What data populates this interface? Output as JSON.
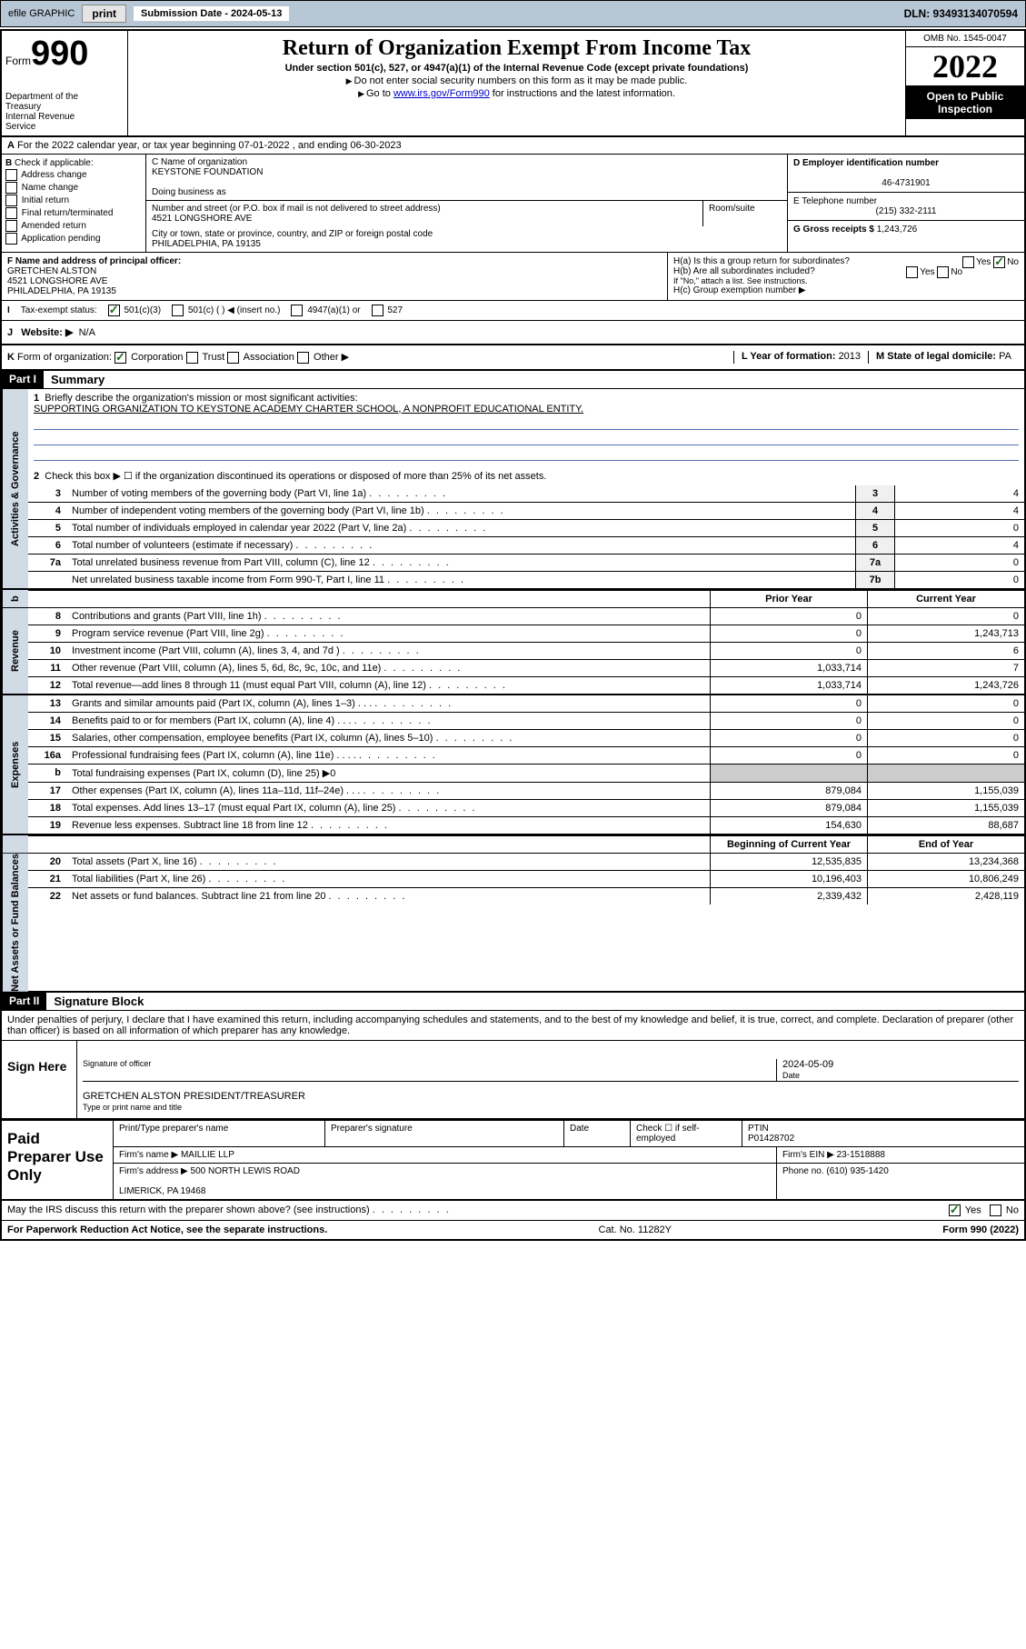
{
  "header_bar": {
    "efile_label": "efile GRAPHIC",
    "print_btn": "print",
    "sub_date_label": "Submission Date - 2024-05-13",
    "dln": "DLN: 93493134070594"
  },
  "title": {
    "form_label": "Form",
    "form_number": "990",
    "dept": "Department of the Treasury\nInternal Revenue Service",
    "main": "Return of Organization Exempt From Income Tax",
    "sub": "Under section 501(c), 527, or 4947(a)(1) of the Internal Revenue Code (except private foundations)",
    "line1": "Do not enter social security numbers on this form as it may be made public.",
    "line2_pre": "Go to ",
    "line2_link": "www.irs.gov/Form990",
    "line2_post": " for instructions and the latest information.",
    "omb": "OMB No. 1545-0047",
    "year": "2022",
    "open": "Open to Public Inspection"
  },
  "row_a": "For the 2022 calendar year, or tax year beginning 07-01-2022    , and ending 06-30-2023",
  "box_b": {
    "label": "Check if applicable:",
    "items": [
      "Address change",
      "Name change",
      "Initial return",
      "Final return/terminated",
      "Amended return",
      "Application pending"
    ]
  },
  "box_c": {
    "name_label": "C Name of organization",
    "name": "KEYSTONE FOUNDATION",
    "dba_label": "Doing business as",
    "addr_label": "Number and street (or P.O. box if mail is not delivered to street address)",
    "room_label": "Room/suite",
    "addr": "4521 LONGSHORE AVE",
    "city_label": "City or town, state or province, country, and ZIP or foreign postal code",
    "city": "PHILADELPHIA, PA  19135"
  },
  "box_d": {
    "ein_label": "D Employer identification number",
    "ein": "46-4731901",
    "phone_label": "E Telephone number",
    "phone": "(215) 332-2111",
    "gross_label": "G Gross receipts $",
    "gross": "1,243,726"
  },
  "box_f": {
    "label": "F  Name and address of principal officer:",
    "name": "GRETCHEN ALSTON",
    "addr1": "4521 LONGSHORE AVE",
    "addr2": "PHILADELPHIA, PA  19135"
  },
  "box_h": {
    "ha": "H(a)  Is this a group return for subordinates?",
    "hb": "H(b)  Are all subordinates included?",
    "hb_note": "If \"No,\" attach a list. See instructions.",
    "hc": "H(c)  Group exemption number ▶"
  },
  "row_i": {
    "label": "Tax-exempt status:",
    "opts": [
      "501(c)(3)",
      "501(c) (  ) ◀ (insert no.)",
      "4947(a)(1) or",
      "527"
    ]
  },
  "row_j": {
    "label": "Website: ▶",
    "val": "N/A"
  },
  "row_k": {
    "left": "Form of organization:",
    "opts": [
      "Corporation",
      "Trust",
      "Association",
      "Other ▶"
    ],
    "year_label": "L Year of formation:",
    "year": "2013",
    "state_label": "M State of legal domicile:",
    "state": "PA"
  },
  "part1": {
    "header": "Part I",
    "title": "Summary",
    "mission_label": "Briefly describe the organization's mission or most significant activities:",
    "mission": "SUPPORTING ORGANIZATION TO KEYSTONE ACADEMY CHARTER SCHOOL, A NONPROFIT EDUCATIONAL ENTITY.",
    "line2": "Check this box ▶ ☐  if the organization discontinued its operations or disposed of more than 25% of its net assets.",
    "gov_lines": [
      {
        "n": "3",
        "t": "Number of voting members of the governing body (Part VI, line 1a)",
        "box": "3",
        "v": "4"
      },
      {
        "n": "4",
        "t": "Number of independent voting members of the governing body (Part VI, line 1b)",
        "box": "4",
        "v": "4"
      },
      {
        "n": "5",
        "t": "Total number of individuals employed in calendar year 2022 (Part V, line 2a)",
        "box": "5",
        "v": "0"
      },
      {
        "n": "6",
        "t": "Total number of volunteers (estimate if necessary)",
        "box": "6",
        "v": "4"
      },
      {
        "n": "7a",
        "t": "Total unrelated business revenue from Part VIII, column (C), line 12",
        "box": "7a",
        "v": "0"
      },
      {
        "n": "",
        "t": "Net unrelated business taxable income from Form 990-T, Part I, line 11",
        "box": "7b",
        "v": "0"
      }
    ],
    "col_headers": {
      "b": "b",
      "prior": "Prior Year",
      "current": "Current Year"
    },
    "rev_lines": [
      {
        "n": "8",
        "t": "Contributions and grants (Part VIII, line 1h)",
        "p": "0",
        "c": "0"
      },
      {
        "n": "9",
        "t": "Program service revenue (Part VIII, line 2g)",
        "p": "0",
        "c": "1,243,713"
      },
      {
        "n": "10",
        "t": "Investment income (Part VIII, column (A), lines 3, 4, and 7d )",
        "p": "0",
        "c": "6"
      },
      {
        "n": "11",
        "t": "Other revenue (Part VIII, column (A), lines 5, 6d, 8c, 9c, 10c, and 11e)",
        "p": "1,033,714",
        "c": "7"
      },
      {
        "n": "12",
        "t": "Total revenue—add lines 8 through 11 (must equal Part VIII, column (A), line 12)",
        "p": "1,033,714",
        "c": "1,243,726"
      }
    ],
    "exp_lines": [
      {
        "n": "13",
        "t": "Grants and similar amounts paid (Part IX, column (A), lines 1–3)   .    .    .",
        "p": "0",
        "c": "0"
      },
      {
        "n": "14",
        "t": "Benefits paid to or for members (Part IX, column (A), line 4)   .    .    .",
        "p": "0",
        "c": "0"
      },
      {
        "n": "15",
        "t": "Salaries, other compensation, employee benefits (Part IX, column (A), lines 5–10)",
        "p": "0",
        "c": "0"
      },
      {
        "n": "16a",
        "t": "Professional fundraising fees (Part IX, column (A), line 11e)   .    .    .    .",
        "p": "0",
        "c": "0"
      },
      {
        "n": "b",
        "t": "Total fundraising expenses (Part IX, column (D), line 25) ▶0",
        "p": "",
        "c": ""
      },
      {
        "n": "17",
        "t": "Other expenses (Part IX, column (A), lines 11a–11d, 11f–24e)   .    .    .",
        "p": "879,084",
        "c": "1,155,039"
      },
      {
        "n": "18",
        "t": "Total expenses. Add lines 13–17 (must equal Part IX, column (A), line 25)",
        "p": "879,084",
        "c": "1,155,039"
      },
      {
        "n": "19",
        "t": "Revenue less expenses. Subtract line 18 from line 12",
        "p": "154,630",
        "c": "88,687"
      }
    ],
    "na_headers": {
      "prior": "Beginning of Current Year",
      "current": "End of Year"
    },
    "na_lines": [
      {
        "n": "20",
        "t": "Total assets (Part X, line 16)",
        "p": "12,535,835",
        "c": "13,234,368"
      },
      {
        "n": "21",
        "t": "Total liabilities (Part X, line 26)",
        "p": "10,196,403",
        "c": "10,806,249"
      },
      {
        "n": "22",
        "t": "Net assets or fund balances. Subtract line 21 from line 20",
        "p": "2,339,432",
        "c": "2,428,119"
      }
    ],
    "side_labels": {
      "gov": "Activities & Governance",
      "rev": "Revenue",
      "exp": "Expenses",
      "na": "Net Assets or Fund Balances"
    }
  },
  "part2": {
    "header": "Part II",
    "title": "Signature Block",
    "intro": "Under penalties of perjury, I declare that I have examined this return, including accompanying schedules and statements, and to the best of my knowledge and belief, it is true, correct, and complete. Declaration of preparer (other than officer) is based on all information of which preparer has any knowledge.",
    "sign_here": "Sign Here",
    "sig_officer": "Signature of officer",
    "date_label": "Date",
    "sig_date": "2024-05-09",
    "officer_name": "GRETCHEN ALSTON  PRESIDENT/TREASURER",
    "type_name_label": "Type or print name and title",
    "paid_label": "Paid Preparer Use Only",
    "prep_headers": [
      "Print/Type preparer's name",
      "Preparer's signature",
      "Date"
    ],
    "check_if": "Check ☐ if self-employed",
    "ptin_label": "PTIN",
    "ptin": "P01428702",
    "firm_name_label": "Firm's name    ▶",
    "firm_name": "MAILLIE LLP",
    "firm_ein_label": "Firm's EIN ▶",
    "firm_ein": "23-1518888",
    "firm_addr_label": "Firm's address ▶",
    "firm_addr1": "500 NORTH LEWIS ROAD",
    "firm_addr2": "LIMERICK, PA  19468",
    "phone_label": "Phone no.",
    "phone": "(610) 935-1420",
    "discuss": "May the IRS discuss this return with the preparer shown above? (see instructions)",
    "footer_left": "For Paperwork Reduction Act Notice, see the separate instructions.",
    "footer_mid": "Cat. No. 11282Y",
    "footer_right": "Form 990 (2022)"
  }
}
